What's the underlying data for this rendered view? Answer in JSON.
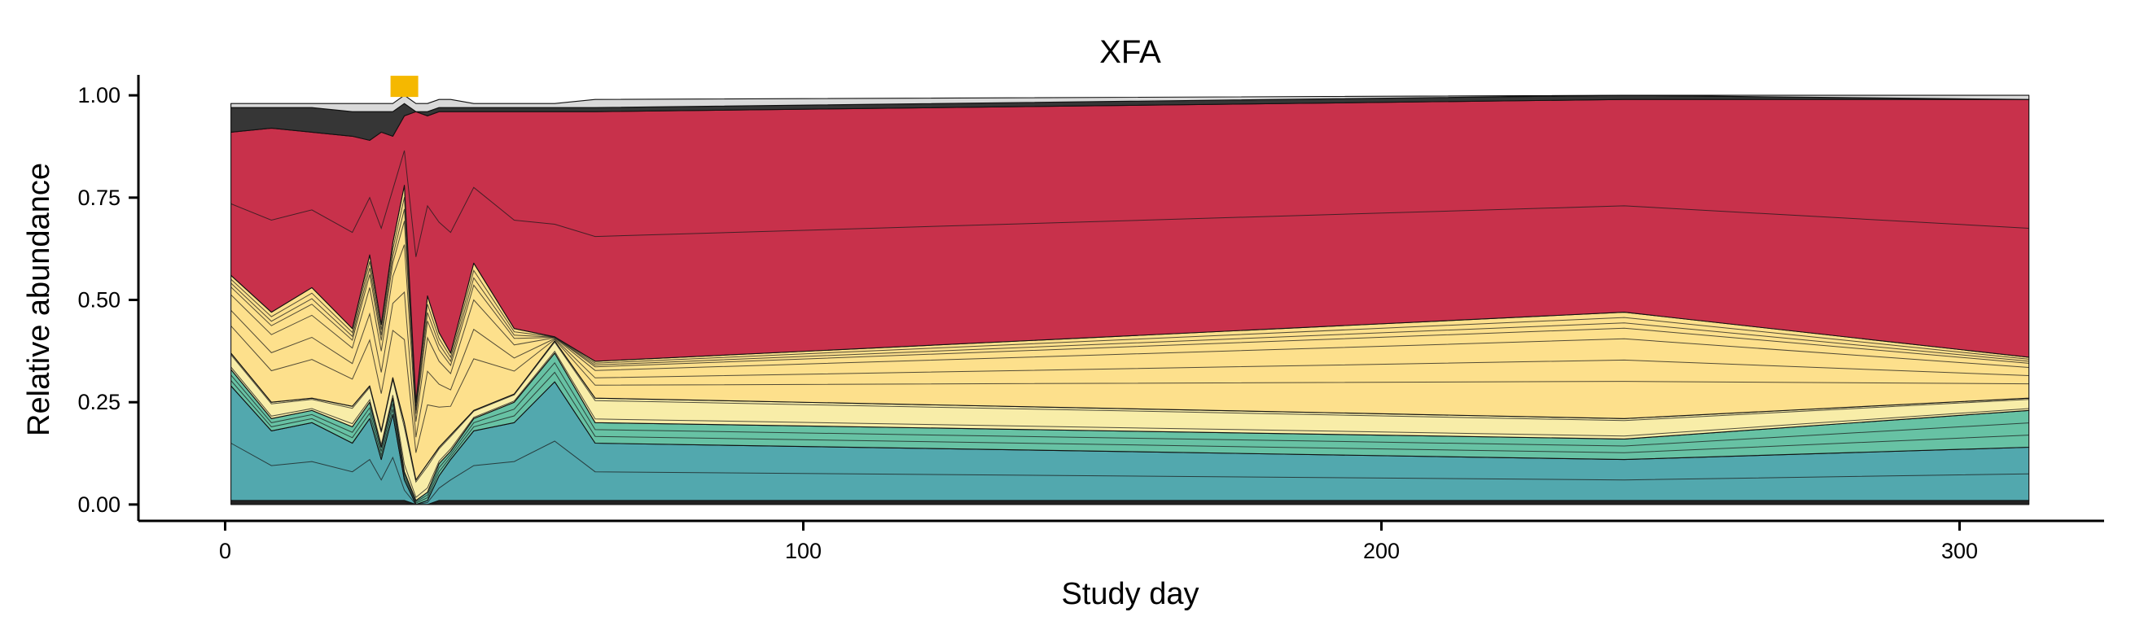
{
  "chart_data": {
    "type": "area",
    "stacked": true,
    "title": "XFA",
    "xlabel": "Study day",
    "ylabel": "Relative abundance",
    "xlim": [
      -15,
      325
    ],
    "ylim": [
      -0.04,
      1.05
    ],
    "x_ticks": [
      0,
      100,
      200,
      300
    ],
    "x_tick_labels": [
      "0",
      "100",
      "200",
      "300"
    ],
    "y_ticks": [
      0,
      0.25,
      0.5,
      0.75,
      1
    ],
    "y_tick_labels": [
      "0.00",
      "0.25",
      "0.50",
      "0.75",
      "1.00"
    ],
    "grid": false,
    "legend": "none",
    "x": [
      1,
      8,
      15,
      22,
      25,
      27,
      29,
      31,
      33,
      35,
      37,
      39,
      43,
      50,
      57,
      64,
      242,
      312
    ],
    "series": [
      {
        "color": "#333333",
        "values": [
          0.01,
          0.01,
          0.01,
          0.01,
          0.01,
          0.01,
          0.01,
          0.01,
          0.0,
          0.0,
          0.01,
          0.01,
          0.01,
          0.01,
          0.01,
          0.01,
          0.01,
          0.01
        ]
      },
      {
        "color": "#52A8AE",
        "values": [
          0.28,
          0.17,
          0.19,
          0.14,
          0.2,
          0.1,
          0.21,
          0.05,
          0.0,
          0.01,
          0.06,
          0.1,
          0.17,
          0.19,
          0.29,
          0.14,
          0.1,
          0.13
        ]
      },
      {
        "color": "#67C2A4",
        "values": [
          0.04,
          0.03,
          0.03,
          0.04,
          0.04,
          0.03,
          0.04,
          0.02,
          0.01,
          0.02,
          0.03,
          0.02,
          0.03,
          0.05,
          0.07,
          0.05,
          0.05,
          0.09
        ]
      },
      {
        "color": "#F8EDA8",
        "values": [
          0.04,
          0.04,
          0.03,
          0.05,
          0.04,
          0.04,
          0.05,
          0.12,
          0.05,
          0.07,
          0.04,
          0.04,
          0.02,
          0.02,
          0.03,
          0.06,
          0.05,
          0.03
        ]
      },
      {
        "color": "#FDE08C",
        "values": [
          0.19,
          0.22,
          0.27,
          0.19,
          0.32,
          0.26,
          0.33,
          0.58,
          0.19,
          0.41,
          0.28,
          0.2,
          0.36,
          0.16,
          0.01,
          0.09,
          0.26,
          0.1
        ]
      },
      {
        "color": "#C8314B",
        "values": [
          0.35,
          0.45,
          0.38,
          0.47,
          0.28,
          0.47,
          0.26,
          0.17,
          0.71,
          0.44,
          0.54,
          0.59,
          0.37,
          0.53,
          0.55,
          0.61,
          0.52,
          0.63
        ]
      },
      {
        "color": "#363636",
        "values": [
          0.06,
          0.05,
          0.06,
          0.06,
          0.07,
          0.05,
          0.06,
          0.03,
          0.0,
          0.01,
          0.01,
          0.01,
          0.01,
          0.01,
          0.01,
          0.01,
          0.01,
          0.0
        ]
      },
      {
        "color": "#D9D9D9",
        "values": [
          0.01,
          0.01,
          0.01,
          0.02,
          0.02,
          0.02,
          0.02,
          0.02,
          0.02,
          0.02,
          0.02,
          0.02,
          0.01,
          0.01,
          0.01,
          0.02,
          0.0,
          0.01
        ]
      }
    ],
    "inner_lines": [
      {
        "layer": 1,
        "fractions": [
          0.25,
          0.5,
          0.75
        ]
      },
      {
        "layer": 2,
        "fractions": [
          0.5
        ]
      },
      {
        "layer": 3,
        "fractions": [
          0.33,
          0.66
        ]
      },
      {
        "layer": 4,
        "fractions": [
          0.15,
          0.9
        ]
      },
      {
        "layer": 5,
        "fractions": [
          0.35,
          0.55,
          0.75,
          0.85,
          0.9,
          0.95
        ]
      },
      {
        "layer": 6,
        "fractions": [
          0.5
        ]
      }
    ],
    "marker": {
      "x": 31,
      "y": 1.02,
      "color": "#F5B800",
      "shape": "square"
    }
  }
}
